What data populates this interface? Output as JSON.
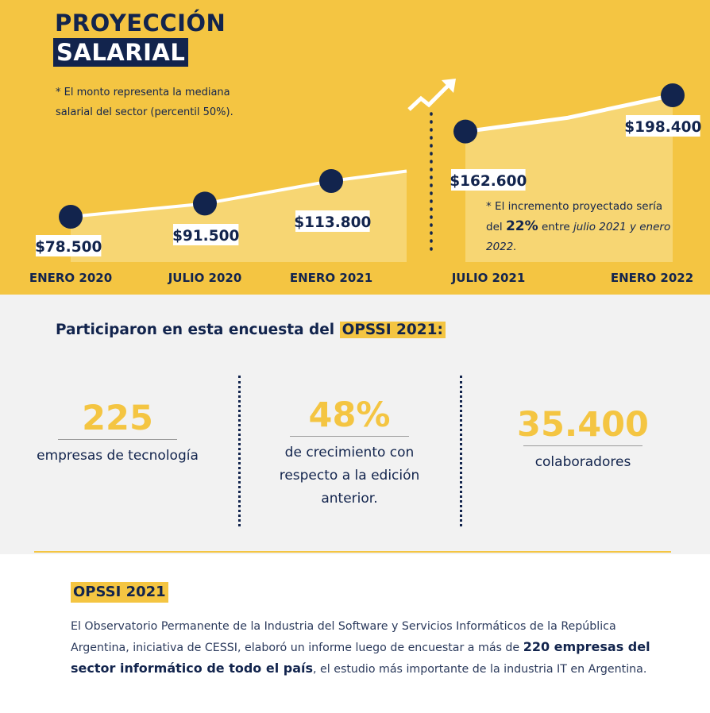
{
  "chart_data": {
    "type": "line",
    "title_line1": "PROYECCIÓN",
    "title_line2": "SALARIAL",
    "footnote": "* El monto representa la mediana salarial del sector (percentil 50%).",
    "categories": [
      "ENERO 2020",
      "JULIO 2020",
      "ENERO 2021",
      "JULIO 2021",
      "ENERO 2022"
    ],
    "series": [
      {
        "values": [
          78500,
          91500,
          113800,
          162600,
          198400
        ]
      }
    ],
    "value_labels": [
      "$78.500",
      "$91.500",
      "$113.800",
      "$162.600",
      "$198.400"
    ],
    "projection_start_category": "JULIO 2021",
    "projection_note": {
      "prefix": "* El incremento proyectado sería del",
      "percent": "22%",
      "middle": "entre",
      "period": "julio 2021 y enero 2022."
    },
    "colors": {
      "background": "#f4c542",
      "area": "#f7d673",
      "line": "#ffffff",
      "marker": "#12244d",
      "text": "#12244d"
    }
  },
  "participants": {
    "heading_prefix": "Participaron en esta encuesta del",
    "heading_highlight": "OPSSI 2021:",
    "stats": [
      {
        "value": "225",
        "label": "empresas de tecnología"
      },
      {
        "value": "48%",
        "label_lines": [
          "de crecimiento con",
          "respecto a la edición",
          "anterior."
        ]
      },
      {
        "value": "35.400",
        "label": "colaboradores"
      }
    ]
  },
  "about": {
    "title": "OPSSI 2021",
    "text_part1": "El Observatorio Permanente de la Industria del Software y Servicios Informáticos de la República Argentina, iniciativa de CESSI, elaboró un informe luego de encuestar a más de",
    "text_bold": "220 empresas del sector informático de todo el país",
    "text_part2": ", el estudio más importante de la industria IT en Argentina."
  }
}
